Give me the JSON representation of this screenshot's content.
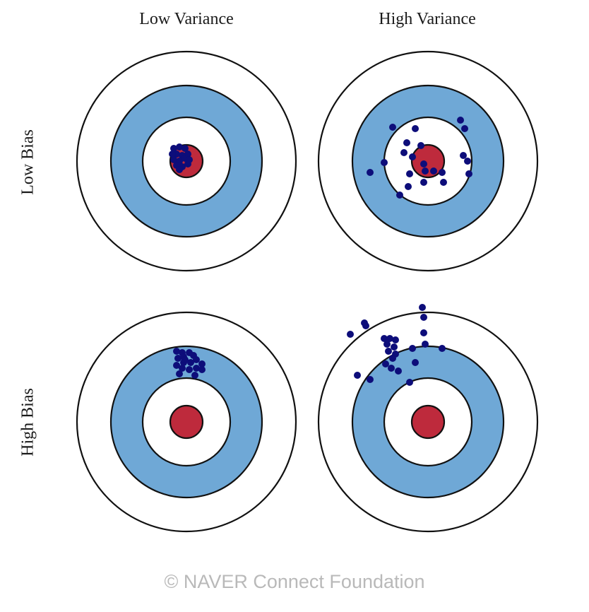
{
  "columns": [
    "Low Variance",
    "High Variance"
  ],
  "rows": [
    "Low Bias",
    "High Bias"
  ],
  "colors": {
    "outer_ring": "#ffffff",
    "middle_ring": "#6fa8d6",
    "inner_ring": "#ffffff",
    "bullseye": "#be2a3c",
    "dots": "#0d0d7a",
    "stroke": "#111111"
  },
  "targets": [
    {
      "name": "low-bias-low-variance",
      "row": 0,
      "col": 0
    },
    {
      "name": "low-bias-high-variance",
      "row": 0,
      "col": 1
    },
    {
      "name": "high-bias-low-variance",
      "row": 1,
      "col": 0
    },
    {
      "name": "high-bias-high-variance",
      "row": 1,
      "col": 1
    }
  ],
  "credit": "©  NAVER Connect Foundation"
}
